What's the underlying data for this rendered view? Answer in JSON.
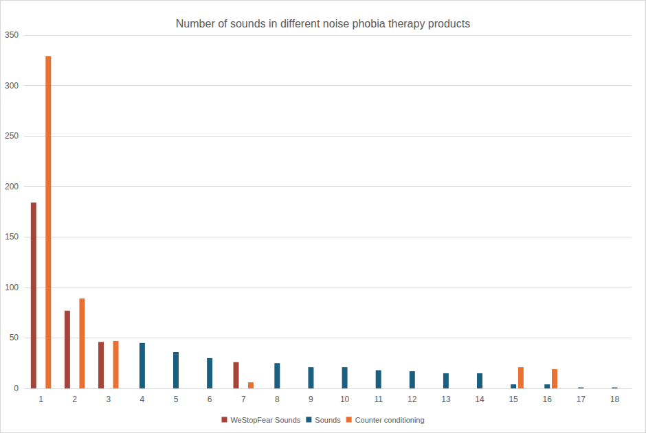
{
  "chart_data": {
    "type": "bar",
    "title": "Number of sounds in different noise phobia therapy products",
    "categories": [
      "1",
      "2",
      "3",
      "4",
      "5",
      "6",
      "7",
      "8",
      "9",
      "10",
      "11",
      "12",
      "13",
      "14",
      "15",
      "16",
      "17",
      "18"
    ],
    "series": [
      {
        "name": "WeStopFear Sounds",
        "color": "#a5453a",
        "values": [
          184,
          77,
          46,
          null,
          null,
          null,
          26,
          null,
          null,
          null,
          null,
          null,
          null,
          null,
          null,
          null,
          null,
          null
        ]
      },
      {
        "name": "Sounds",
        "color": "#1b5f80",
        "values": [
          null,
          null,
          null,
          45,
          36,
          30,
          null,
          25,
          21,
          21,
          18,
          17,
          15,
          15,
          4,
          4,
          1,
          1
        ]
      },
      {
        "name": "Counter conditioning",
        "color": "#e97132",
        "values": [
          329,
          89,
          47,
          null,
          null,
          null,
          6,
          null,
          null,
          null,
          null,
          null,
          null,
          null,
          21,
          19,
          null,
          null
        ]
      }
    ],
    "ylim": [
      0,
      350
    ],
    "yticks": [
      0,
      50,
      100,
      150,
      200,
      250,
      300,
      350
    ],
    "grid": true,
    "legend": "bottom"
  }
}
